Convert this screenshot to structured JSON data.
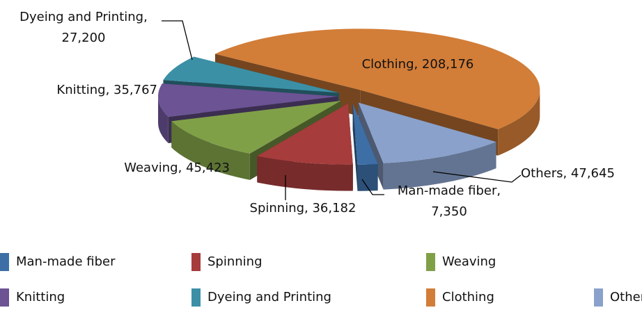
{
  "chart_data": {
    "type": "pie3d",
    "categories": [
      "Man-made fiber",
      "Spinning",
      "Weaving",
      "Knitting",
      "Dyeing and Printing",
      "Clothing",
      "Others"
    ],
    "values": [
      7350,
      36182,
      45423,
      35767,
      27200,
      208176,
      47645
    ],
    "value_labels": [
      "Man-made fiber, 7,350",
      "Spinning, 36,182",
      "Weaving, 45,423",
      "Knitting, 35,767",
      "Dyeing and Printing, 27,200",
      "Clothing, 208,176",
      "Others, 47,645"
    ],
    "colors": [
      "#3d6fa6",
      "#a63c3c",
      "#80a048",
      "#6b5394",
      "#3b90a6",
      "#d27d38",
      "#8aa1cb"
    ],
    "legend": "bottom"
  }
}
